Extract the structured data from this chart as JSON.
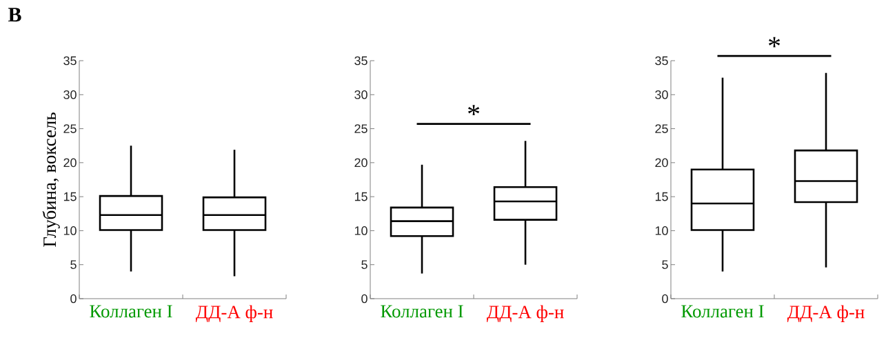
{
  "chart_data": [
    {
      "type": "box",
      "title": "B",
      "ylabel": "Глубина, воксель",
      "categories": [
        "Коллаген I",
        "ДД-А ф-н"
      ],
      "ylim": [
        0,
        35
      ],
      "yticks": [
        0,
        5,
        10,
        15,
        20,
        25,
        30,
        35
      ],
      "grid": false,
      "boxes": [
        {
          "low": 4,
          "q1": 10.1,
          "median": 12.3,
          "q3": 15.1,
          "high": 22.5
        },
        {
          "low": 3.3,
          "q1": 10.1,
          "median": 12.3,
          "q3": 14.9,
          "high": 21.9
        }
      ]
    },
    {
      "type": "box",
      "categories": [
        "Коллаген I",
        "ДД-А ф-н"
      ],
      "ylim": [
        0,
        35
      ],
      "yticks": [
        0,
        5,
        10,
        15,
        20,
        25,
        30,
        35
      ],
      "grid": false,
      "annotations": [
        "*"
      ],
      "boxes": [
        {
          "low": 3.7,
          "q1": 9.2,
          "median": 11.4,
          "q3": 13.4,
          "high": 19.7
        },
        {
          "low": 5,
          "q1": 11.6,
          "median": 14.3,
          "q3": 16.4,
          "high": 23.2
        }
      ]
    },
    {
      "type": "box",
      "categories": [
        "Коллаген I",
        "ДД-А ф-н"
      ],
      "ylim": [
        0,
        35
      ],
      "yticks": [
        0,
        5,
        10,
        15,
        20,
        25,
        30,
        35
      ],
      "grid": false,
      "annotations": [
        "*"
      ],
      "boxes": [
        {
          "low": 4,
          "q1": 10.1,
          "median": 14,
          "q3": 19,
          "high": 32.5
        },
        {
          "low": 4.6,
          "q1": 14.2,
          "median": 17.3,
          "q3": 21.8,
          "high": 33.2
        }
      ]
    }
  ]
}
